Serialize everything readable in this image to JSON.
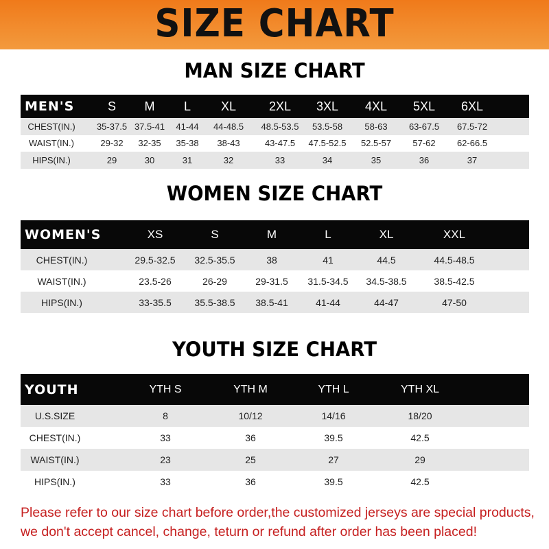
{
  "banner": {
    "title": "SIZE CHART",
    "color": "#f07a1a"
  },
  "men": {
    "title": "MAN SIZE CHART",
    "header": [
      "MEN'S",
      "S",
      "M",
      "L",
      "XL",
      "2XL",
      "3XL",
      "4XL",
      "5XL",
      "6XL"
    ],
    "rows": [
      [
        "CHEST(IN.)",
        "35-37.5",
        "37.5-41",
        "41-44",
        "44-48.5",
        "48.5-53.5",
        "53.5-58",
        "58-63",
        "63-67.5",
        "67.5-72"
      ],
      [
        "WAIST(IN.)",
        "29-32",
        "32-35",
        "35-38",
        "38-43",
        "43-47.5",
        "47.5-52.5",
        "52.5-57",
        "57-62",
        "62-66.5"
      ],
      [
        "HIPS(IN.)",
        "29",
        "30",
        "31",
        "32",
        "33",
        "34",
        "35",
        "36",
        "37"
      ]
    ]
  },
  "women": {
    "title": "WOMEN SIZE CHART",
    "header": [
      "WOMEN'S",
      "XS",
      "S",
      "M",
      "L",
      "XL",
      "XXL"
    ],
    "rows": [
      [
        "CHEST(IN.)",
        "29.5-32.5",
        "32.5-35.5",
        "38",
        "41",
        "44.5",
        "44.5-48.5"
      ],
      [
        "WAIST(IN.)",
        "23.5-26",
        "26-29",
        "29-31.5",
        "31.5-34.5",
        "34.5-38.5",
        "38.5-42.5"
      ],
      [
        "HIPS(IN.)",
        "33-35.5",
        "35.5-38.5",
        "38.5-41",
        "41-44",
        "44-47",
        "47-50"
      ]
    ]
  },
  "youth": {
    "title": "YOUTH SIZE CHART",
    "header": [
      "YOUTH",
      "YTH S",
      "YTH M",
      "YTH L",
      "YTH XL"
    ],
    "rows": [
      [
        "U.S.SIZE",
        "8",
        "10/12",
        "14/16",
        "18/20"
      ],
      [
        "CHEST(IN.)",
        "33",
        "36",
        "39.5",
        "42.5"
      ],
      [
        "WAIST(IN.)",
        "23",
        "25",
        "27",
        "29"
      ],
      [
        "HIPS(IN.)",
        "33",
        "36",
        "39.5",
        "42.5"
      ]
    ]
  },
  "note": {
    "line1": "Please refer to our size chart before order,the customized jerseys are special products,",
    "line2": "we don't accept cancel, change, teturn or refund after order has been placed!",
    "color": "#c62020"
  }
}
